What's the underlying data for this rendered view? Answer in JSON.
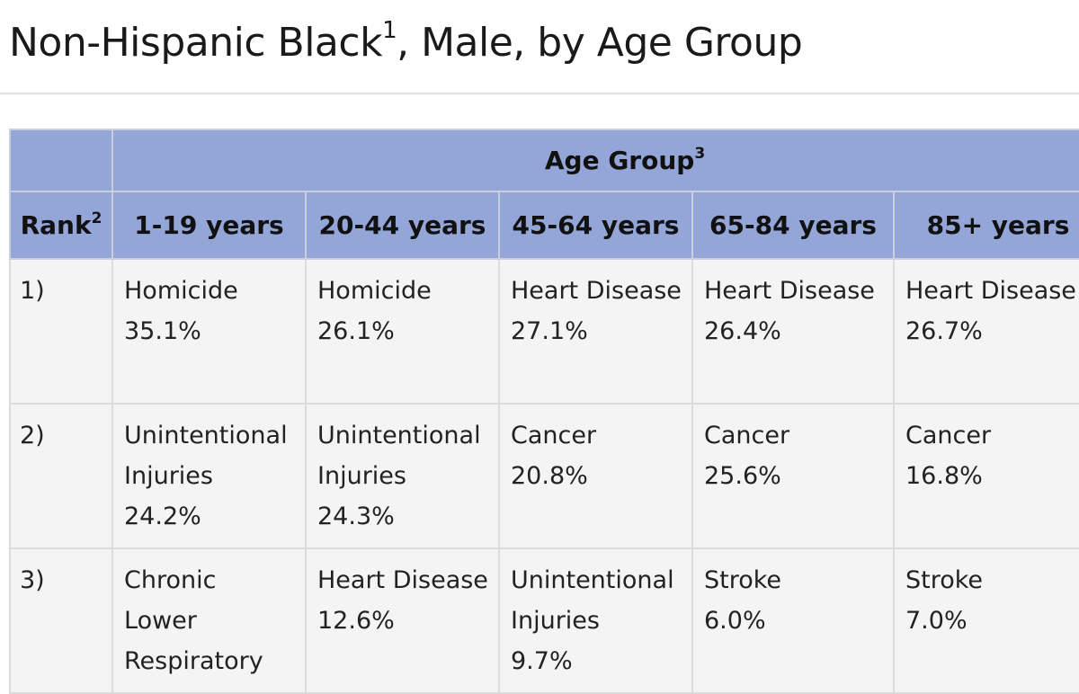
{
  "title": {
    "text": "Non-Hispanic Black",
    "sup": "1",
    "suffix": ", Male, by Age Group"
  },
  "table": {
    "group_header": {
      "text": "Age Group",
      "sup": "3"
    },
    "rank_header": {
      "text": "Rank",
      "sup": "2"
    },
    "columns": [
      "1-19 years",
      "20-44 years",
      "45-64 years",
      "65-84 years",
      "85+ years"
    ],
    "rows": [
      {
        "rank": "1)",
        "cells": [
          {
            "cause": "Homicide",
            "pct": "35.1%"
          },
          {
            "cause": "Homicide",
            "pct": "26.1%"
          },
          {
            "cause": "Heart Disease",
            "pct": "27.1%"
          },
          {
            "cause": "Heart Disease",
            "pct": "26.4%"
          },
          {
            "cause": "Heart Disease",
            "pct": "26.7%"
          }
        ]
      },
      {
        "rank": "2)",
        "cells": [
          {
            "cause": "Unintentional Injuries",
            "pct": "24.2%"
          },
          {
            "cause": "Unintentional Injuries",
            "pct": "24.3%"
          },
          {
            "cause": "Cancer",
            "pct": "20.8%"
          },
          {
            "cause": "Cancer",
            "pct": "25.6%"
          },
          {
            "cause": "Cancer",
            "pct": "16.8%"
          }
        ]
      },
      {
        "rank": "3)",
        "cells": [
          {
            "cause": "Chronic Lower Respiratory",
            "pct": ""
          },
          {
            "cause": "Heart Disease",
            "pct": "12.6%"
          },
          {
            "cause": "Unintentional Injuries",
            "pct": "9.7%"
          },
          {
            "cause": "Stroke",
            "pct": "6.0%"
          },
          {
            "cause": "Stroke",
            "pct": "7.0%"
          }
        ]
      }
    ]
  }
}
